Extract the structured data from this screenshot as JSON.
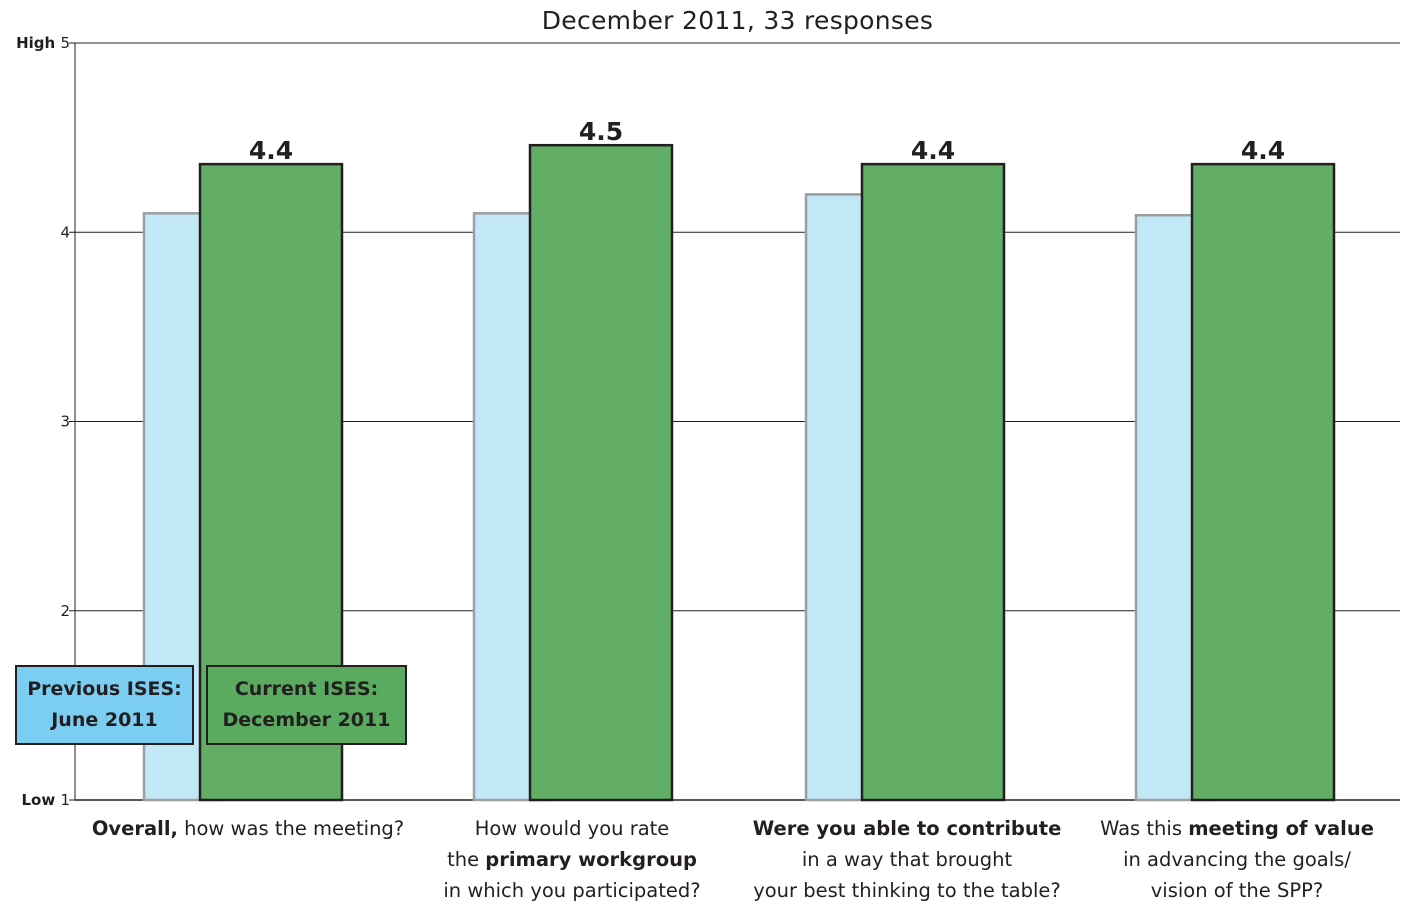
{
  "chart_data": {
    "type": "bar",
    "title": "December 2011, 33 responses",
    "categories": [
      {
        "parts": [
          {
            "text": "Overall,",
            "bold": true
          },
          {
            "text": " how was the meeting?",
            "bold": false
          }
        ]
      },
      {
        "parts": [
          {
            "text": "How would you rate",
            "bold": false
          },
          {
            "br": true
          },
          {
            "text": "the ",
            "bold": false
          },
          {
            "text": "primary workgroup",
            "bold": true
          },
          {
            "br": true
          },
          {
            "text": "in which you participated?",
            "bold": false
          }
        ]
      },
      {
        "parts": [
          {
            "text": "Were you able to contribute",
            "bold": true
          },
          {
            "br": true
          },
          {
            "text": "in a way that brought",
            "bold": false
          },
          {
            "br": true
          },
          {
            "text": "your best thinking to the table?",
            "bold": false
          }
        ]
      },
      {
        "parts": [
          {
            "text": "Was this ",
            "bold": false
          },
          {
            "text": "meeting of value",
            "bold": true
          },
          {
            "br": true
          },
          {
            "text": "in advancing the goals/",
            "bold": false
          },
          {
            "br": true
          },
          {
            "text": "vision of the SPP?",
            "bold": false
          }
        ]
      }
    ],
    "series": [
      {
        "name": "Previous ISES: June 2011",
        "values": [
          4.1,
          4.1,
          4.2,
          4.09
        ],
        "color": "#c2e8f7"
      },
      {
        "name": "Current ISES: December 2011",
        "values": [
          4.36,
          4.46,
          4.36,
          4.36
        ],
        "color": "#62ae66"
      }
    ],
    "data_labels": [
      "4.4",
      "4.5",
      "4.4",
      "4.4"
    ],
    "ylim": [
      1,
      5
    ],
    "yticks": [
      1,
      2,
      3,
      4,
      5
    ],
    "ytick_prefix": {
      "1": "Low",
      "5": "High"
    },
    "grid": true,
    "legend": {
      "placement": "bottom-left",
      "previous": {
        "line1": "Previous ISES:",
        "line2": "June 2011",
        "color": "#7bcef2"
      },
      "current": {
        "line1": "Current ISES:",
        "line2": "December 2011",
        "color": "#5aaa60"
      }
    }
  }
}
